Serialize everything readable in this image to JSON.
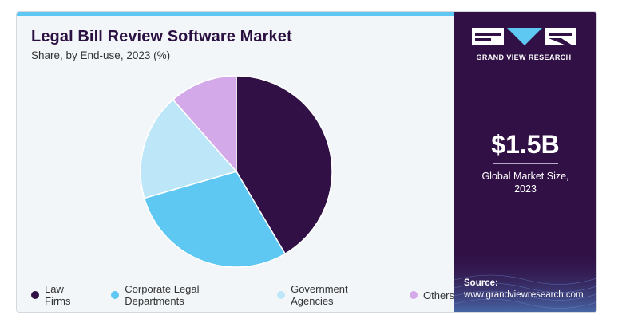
{
  "chart_data": {
    "type": "pie",
    "title": "Legal Bill Review Software Market",
    "subtitle": "Share, by End-use, 2023 (%)",
    "categories": [
      "Law Firms",
      "Corporate Legal Departments",
      "Government Agencies",
      "Others"
    ],
    "values": [
      41.5,
      29.0,
      18.0,
      11.5
    ],
    "colors": [
      "#301045",
      "#5ec8f2",
      "#bde7f8",
      "#d3a9ea"
    ],
    "start_angle_deg": 0,
    "direction": "clockwise",
    "legend_position": "bottom"
  },
  "sidebar": {
    "logo_text": "GRAND VIEW RESEARCH",
    "market_size": "$1.5B",
    "market_label_line1": "Global Market Size,",
    "market_label_line2": "2023",
    "source_title": "Source:",
    "source_url": "www.grandviewresearch.com"
  }
}
